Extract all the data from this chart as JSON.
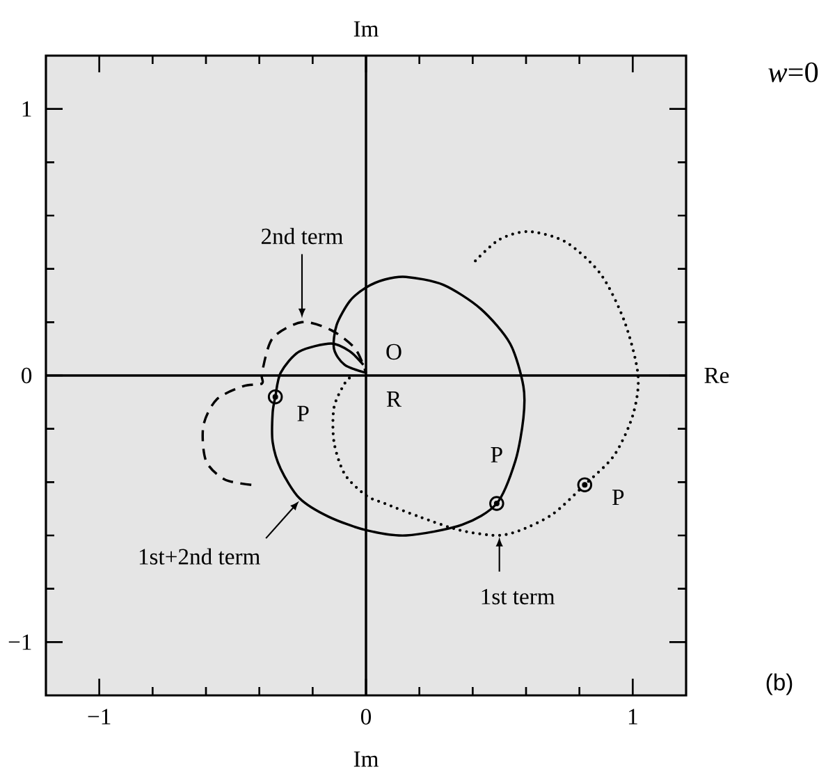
{
  "chart_data": {
    "type": "line",
    "xlabel": "Im",
    "ylabel": "Im",
    "xlim": [
      -1.2,
      1.2
    ],
    "ylim": [
      -1.2,
      1.2
    ],
    "xticks": [
      {
        "value": -1,
        "label": "−1"
      },
      {
        "value": -0.8,
        "label": null
      },
      {
        "value": -0.6,
        "label": null
      },
      {
        "value": -0.4,
        "label": null
      },
      {
        "value": -0.2,
        "label": null
      },
      0,
      {
        "value": 0.2,
        "label": null
      },
      {
        "value": 0.4,
        "label": null
      },
      {
        "value": 0.6,
        "label": null
      },
      {
        "value": 0.8,
        "label": null
      },
      1
    ],
    "yticks": [
      {
        "value": -1,
        "label": "−1"
      },
      {
        "value": -0.8,
        "label": null
      },
      {
        "value": -0.6,
        "label": null
      },
      {
        "value": -0.4,
        "label": null
      },
      {
        "value": -0.2,
        "label": null
      },
      0,
      {
        "value": 0.2,
        "label": null
      },
      {
        "value": 0.4,
        "label": null
      },
      {
        "value": 0.6,
        "label": null
      },
      {
        "value": 0.8,
        "label": null
      },
      1
    ],
    "series": [
      {
        "type": "line",
        "line_style": "dotted",
        "color": "#000000",
        "x": [
          0.41,
          0.5,
          0.61,
          0.75,
          0.88,
          0.97,
          1.02,
          1.0,
          0.93,
          0.82,
          0.7,
          0.58,
          0.49,
          0.35,
          0.2,
          0.07,
          0.0,
          -0.08,
          -0.12,
          -0.12,
          -0.08,
          -0.05
        ],
        "values": [
          0.43,
          0.51,
          0.54,
          0.5,
          0.38,
          0.2,
          0.0,
          -0.15,
          -0.3,
          -0.41,
          -0.52,
          -0.58,
          -0.6,
          -0.58,
          -0.53,
          -0.48,
          -0.45,
          -0.37,
          -0.25,
          -0.12,
          -0.03,
          0.0
        ]
      },
      {
        "type": "line",
        "line_style": "solid",
        "color": "#000000",
        "x": [
          0.0,
          -0.08,
          -0.12,
          -0.11,
          -0.06,
          0.0,
          0.07,
          0.15,
          0.29,
          0.43,
          0.54,
          0.59,
          0.59,
          0.56,
          0.49,
          0.36,
          0.15,
          0.0,
          -0.14,
          -0.25,
          -0.32,
          -0.35,
          -0.35,
          -0.34,
          -0.32,
          -0.25,
          -0.13,
          -0.06,
          -0.01
        ],
        "values": [
          0.01,
          0.04,
          0.1,
          0.19,
          0.28,
          0.33,
          0.36,
          0.37,
          0.34,
          0.25,
          0.12,
          -0.04,
          -0.16,
          -0.32,
          -0.48,
          -0.56,
          -0.6,
          -0.58,
          -0.53,
          -0.46,
          -0.35,
          -0.25,
          -0.14,
          -0.08,
          0.01,
          0.09,
          0.12,
          0.09,
          0.04
        ]
      },
      {
        "type": "line",
        "line_style": "dashed",
        "color": "#000000",
        "x": [
          -0.43,
          -0.53,
          -0.6,
          -0.61,
          -0.56,
          -0.46,
          -0.39,
          -0.39,
          -0.35,
          -0.24,
          -0.13,
          -0.04,
          0.0
        ],
        "values": [
          -0.41,
          -0.39,
          -0.32,
          -0.19,
          -0.09,
          -0.04,
          -0.03,
          0.01,
          0.14,
          0.2,
          0.17,
          0.1,
          0.01
        ]
      },
      {
        "type": "scatter",
        "marker": "circle",
        "color": "#000000",
        "x": [
          -0.34,
          0.49,
          0.82
        ],
        "values": [
          -0.08,
          -0.48,
          -0.41
        ]
      }
    ],
    "annotations": [
      "*w*=0",
      "(b)",
      "Re",
      {
        "text": "2nd term",
        "x": -0.24,
        "y": 0.21
      },
      {
        "text": "1st+2nd term",
        "x": -0.25,
        "y": -0.47
      },
      {
        "text": "1st term",
        "x": 0.5,
        "y": -0.6
      },
      {
        "text": "P",
        "x": -0.34,
        "y": -0.08
      },
      {
        "text": "P",
        "x": 0.49,
        "y": -0.48
      },
      {
        "text": "P",
        "x": 0.82,
        "y": -0.41
      },
      {
        "text": "O",
        "x": 0,
        "y": 0
      },
      {
        "text": "R",
        "x": 0,
        "y": 0
      }
    ]
  }
}
